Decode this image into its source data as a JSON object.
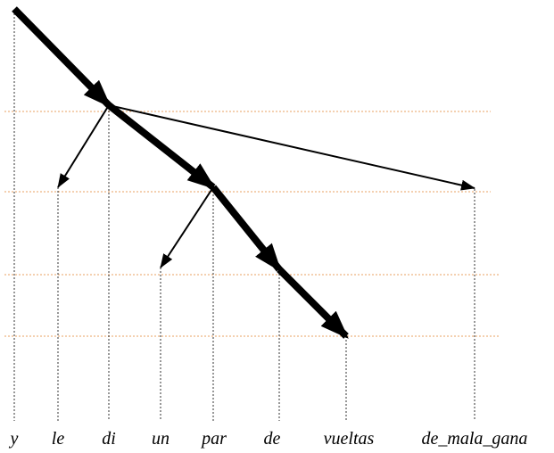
{
  "words": [
    "y",
    "le",
    "di",
    "un",
    "par",
    "de",
    "vueltas",
    "de_mala_gana"
  ]
}
